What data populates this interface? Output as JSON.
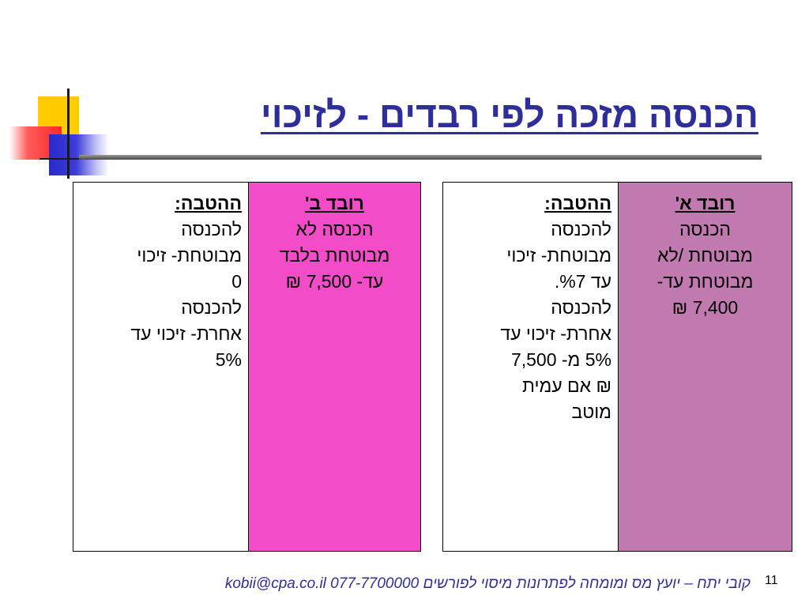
{
  "title": "הכנסה מזכה לפי רבדים - לזיכוי",
  "table_right": {
    "layer_a": {
      "header": "רובד א'",
      "lines": [
        "הכנסה",
        "מבוטחת /לא",
        "מבוטחת עד-",
        "7,400 ₪"
      ]
    },
    "benefit_a": {
      "header": "ההטבה:",
      "lines": [
        "להכנסה",
        "מבוטחת- זיכוי",
        "עד %7.",
        "להכנסה",
        "אחרת- זיכוי עד",
        "5% מ- 7,500",
        "₪ אם עמית",
        "מוטב"
      ]
    }
  },
  "table_left": {
    "layer_b": {
      "header": "רובד ב'",
      "lines": [
        "הכנסה לא",
        "מבוטחת בלבד",
        "עד- 7,500 ₪"
      ]
    },
    "benefit_b": {
      "header": "ההטבה:",
      "lines": [
        "להכנסה",
        "מבוטחת- זיכוי",
        "0",
        "להכנסה",
        "אחרת- זיכוי עד",
        "5%"
      ]
    }
  },
  "footer": {
    "text": "קובי יתח – יועץ מס ומומחה לפתרונות מיסוי לפורשים",
    "contact": "kobii@cpa.co.il  077-7700000"
  },
  "page_number": "11",
  "colors": {
    "title": "#2e2e9a",
    "layer_a_bg": "#c07ab0",
    "layer_b_bg": "#f24cc8"
  }
}
